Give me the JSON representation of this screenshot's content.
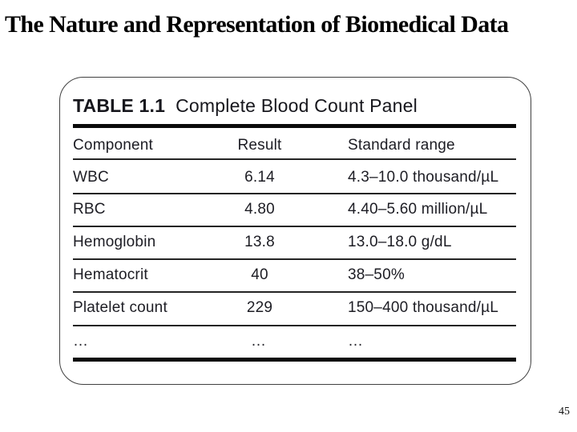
{
  "slide": {
    "title": "The Nature and Representation of Biomedical Data",
    "page_number": "45"
  },
  "table": {
    "label": "TABLE 1.1",
    "caption": "Complete Blood Count Panel",
    "columns": [
      "Component",
      "Result",
      "Standard range"
    ],
    "rows": [
      {
        "component": "WBC",
        "result": "6.14",
        "range": "4.3–10.0 thousand/µL"
      },
      {
        "component": "RBC",
        "result": "4.80",
        "range": "4.40–5.60 million/µL"
      },
      {
        "component": "Hemoglobin",
        "result": "13.8",
        "range": "13.0–18.0 g/dL"
      },
      {
        "component": "Hematocrit",
        "result": "40",
        "range": "38–50%"
      },
      {
        "component": "Platelet count",
        "result": "229",
        "range": "150–400 thousand/µL"
      },
      {
        "component": "…",
        "result": "…",
        "range": "…"
      }
    ]
  },
  "colors": {
    "background": "#ffffff",
    "text": "#1d1d24",
    "rule_thick": "#0a0a0a",
    "rule_thin": "#242424",
    "panel_border": "#404040"
  }
}
